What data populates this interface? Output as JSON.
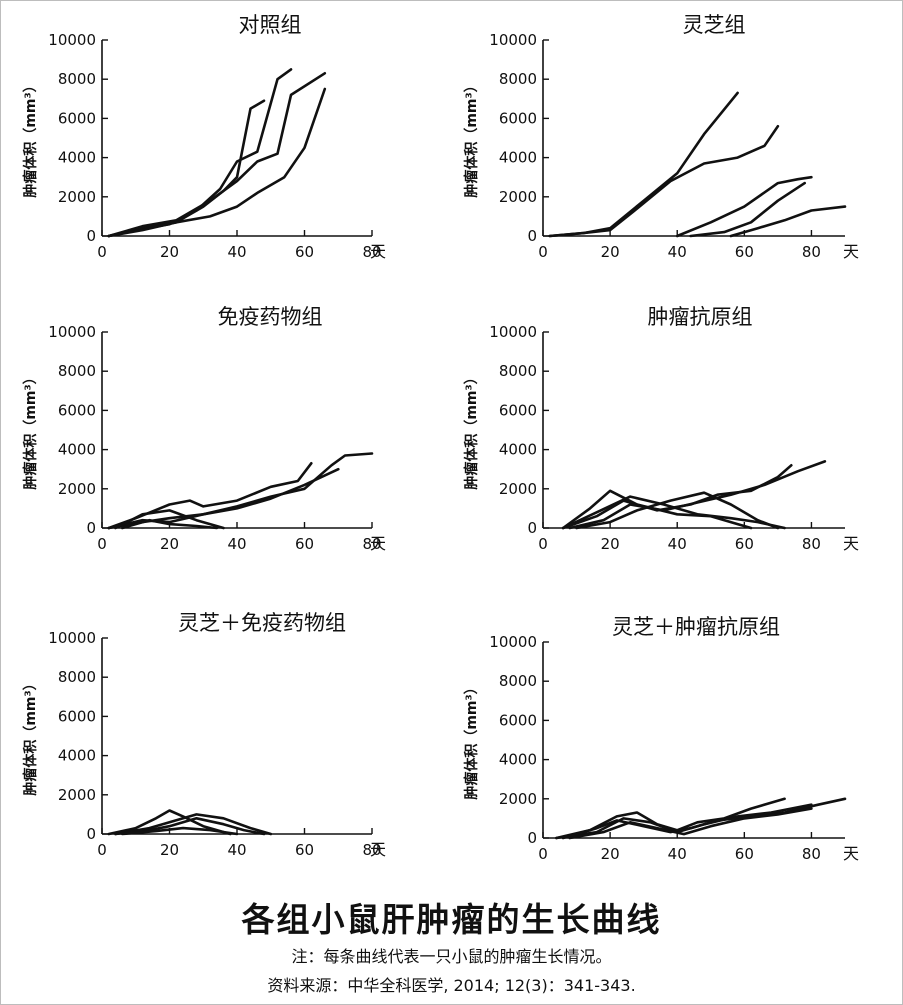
{
  "figure": {
    "title": "各组小鼠肝肿瘤的生长曲线",
    "note": "注：每条曲线代表一只小鼠的肿瘤生长情况。",
    "source": "资料来源：中华全科医学, 2014; 12(3)：341-343."
  },
  "chart_data": [
    {
      "type": "line",
      "title": "对照组",
      "xlabel": "天",
      "ylabel": "肿瘤体积（mm³）",
      "xlim": [
        0,
        80
      ],
      "ylim": [
        0,
        10000
      ],
      "xticks": [
        0,
        20,
        40,
        60,
        80
      ],
      "yticks": [
        0,
        2000,
        4000,
        6000,
        8000,
        10000
      ],
      "series": [
        {
          "points": [
            [
              2,
              0
            ],
            [
              10,
              300
            ],
            [
              20,
              600
            ],
            [
              28,
              1300
            ],
            [
              35,
              2400
            ],
            [
              40,
              3800
            ],
            [
              46,
              4300
            ],
            [
              52,
              8000
            ],
            [
              56,
              8500
            ]
          ]
        },
        {
          "points": [
            [
              2,
              0
            ],
            [
              12,
              400
            ],
            [
              22,
              700
            ],
            [
              30,
              1500
            ],
            [
              36,
              2300
            ],
            [
              40,
              3000
            ],
            [
              44,
              6500
            ],
            [
              48,
              6900
            ]
          ]
        },
        {
          "points": [
            [
              2,
              0
            ],
            [
              12,
              500
            ],
            [
              22,
              800
            ],
            [
              32,
              1800
            ],
            [
              40,
              2800
            ],
            [
              46,
              3800
            ],
            [
              52,
              4200
            ],
            [
              56,
              7200
            ],
            [
              66,
              8300
            ]
          ]
        },
        {
          "points": [
            [
              2,
              0
            ],
            [
              12,
              300
            ],
            [
              22,
              700
            ],
            [
              32,
              1000
            ],
            [
              40,
              1500
            ],
            [
              46,
              2200
            ],
            [
              54,
              3000
            ],
            [
              60,
              4500
            ],
            [
              66,
              7500
            ]
          ]
        }
      ]
    },
    {
      "type": "line",
      "title": "灵芝组",
      "xlabel": "天",
      "ylabel": "肿瘤体积（mm³）",
      "xlim": [
        0,
        90
      ],
      "ylim": [
        0,
        10000
      ],
      "xticks": [
        0,
        20,
        40,
        60,
        80
      ],
      "yticks": [
        0,
        2000,
        4000,
        6000,
        8000,
        10000
      ],
      "series": [
        {
          "points": [
            [
              2,
              0
            ],
            [
              12,
              150
            ],
            [
              20,
              400
            ],
            [
              30,
              1800
            ],
            [
              40,
              3200
            ],
            [
              48,
              5200
            ],
            [
              58,
              7300
            ]
          ]
        },
        {
          "points": [
            [
              2,
              0
            ],
            [
              12,
              150
            ],
            [
              20,
              300
            ],
            [
              28,
              1400
            ],
            [
              38,
              2800
            ],
            [
              48,
              3700
            ],
            [
              58,
              4000
            ],
            [
              66,
              4600
            ],
            [
              70,
              5600
            ]
          ]
        },
        {
          "points": [
            [
              40,
              0
            ],
            [
              50,
              700
            ],
            [
              60,
              1500
            ],
            [
              70,
              2700
            ],
            [
              76,
              2900
            ],
            [
              80,
              3000
            ]
          ]
        },
        {
          "points": [
            [
              44,
              0
            ],
            [
              54,
              200
            ],
            [
              62,
              700
            ],
            [
              70,
              1800
            ],
            [
              78,
              2700
            ]
          ]
        },
        {
          "points": [
            [
              56,
              0
            ],
            [
              64,
              400
            ],
            [
              72,
              800
            ],
            [
              80,
              1300
            ],
            [
              90,
              1500
            ]
          ]
        }
      ]
    },
    {
      "type": "line",
      "title": "免疫药物组",
      "xlabel": "天",
      "ylabel": "肿瘤体积（mm³）",
      "xlim": [
        0,
        80
      ],
      "ylim": [
        0,
        10000
      ],
      "xticks": [
        0,
        20,
        40,
        60,
        80
      ],
      "yticks": [
        0,
        2000,
        4000,
        6000,
        8000,
        10000
      ],
      "series": [
        {
          "points": [
            [
              2,
              0
            ],
            [
              10,
              500
            ],
            [
              20,
              1200
            ],
            [
              26,
              1400
            ],
            [
              30,
              1100
            ],
            [
              40,
              1400
            ],
            [
              50,
              2100
            ],
            [
              58,
              2400
            ],
            [
              62,
              3300
            ]
          ]
        },
        {
          "points": [
            [
              2,
              0
            ],
            [
              12,
              300
            ],
            [
              20,
              500
            ],
            [
              30,
              700
            ],
            [
              40,
              1100
            ],
            [
              50,
              1600
            ],
            [
              60,
              2000
            ],
            [
              68,
              3200
            ],
            [
              72,
              3700
            ],
            [
              80,
              3800
            ]
          ]
        },
        {
          "points": [
            [
              2,
              0
            ],
            [
              12,
              400
            ],
            [
              20,
              300
            ],
            [
              30,
              700
            ],
            [
              40,
              1000
            ],
            [
              50,
              1500
            ],
            [
              60,
              2200
            ],
            [
              70,
              3000
            ]
          ]
        },
        {
          "points": [
            [
              4,
              0
            ],
            [
              12,
              700
            ],
            [
              20,
              900
            ],
            [
              28,
              400
            ],
            [
              36,
              0
            ]
          ]
        },
        {
          "points": [
            [
              6,
              0
            ],
            [
              14,
              400
            ],
            [
              20,
              200
            ],
            [
              28,
              100
            ],
            [
              34,
              0
            ]
          ]
        }
      ]
    },
    {
      "type": "line",
      "title": "肿瘤抗原组",
      "xlabel": "天",
      "ylabel": "肿瘤体积（mm³）",
      "xlim": [
        0,
        90
      ],
      "ylim": [
        0,
        10000
      ],
      "xticks": [
        0,
        20,
        40,
        60,
        80
      ],
      "yticks": [
        0,
        2000,
        4000,
        6000,
        8000,
        10000
      ],
      "series": [
        {
          "points": [
            [
              6,
              0
            ],
            [
              14,
              1000
            ],
            [
              20,
              1900
            ],
            [
              28,
              1200
            ],
            [
              40,
              700
            ],
            [
              50,
              600
            ],
            [
              58,
              200
            ],
            [
              62,
              0
            ]
          ]
        },
        {
          "points": [
            [
              6,
              0
            ],
            [
              16,
              800
            ],
            [
              26,
              1600
            ],
            [
              36,
              1200
            ],
            [
              46,
              700
            ],
            [
              56,
              500
            ],
            [
              64,
              300
            ],
            [
              72,
              0
            ]
          ]
        },
        {
          "points": [
            [
              6,
              0
            ],
            [
              16,
              600
            ],
            [
              24,
              1400
            ],
            [
              34,
              900
            ],
            [
              44,
              1200
            ],
            [
              52,
              1700
            ],
            [
              62,
              1900
            ],
            [
              70,
              2600
            ],
            [
              74,
              3200
            ]
          ]
        },
        {
          "points": [
            [
              8,
              0
            ],
            [
              18,
              400
            ],
            [
              26,
              1200
            ],
            [
              36,
              900
            ],
            [
              46,
              1300
            ],
            [
              56,
              1700
            ],
            [
              66,
              2200
            ],
            [
              76,
              2900
            ],
            [
              84,
              3400
            ]
          ]
        },
        {
          "points": [
            [
              10,
              0
            ],
            [
              20,
              300
            ],
            [
              28,
              900
            ],
            [
              38,
              1400
            ],
            [
              48,
              1800
            ],
            [
              56,
              1200
            ],
            [
              64,
              400
            ],
            [
              70,
              0
            ]
          ]
        }
      ]
    },
    {
      "type": "line",
      "title": "灵芝＋免疫药物组",
      "xlabel": "天",
      "ylabel": "肿瘤体积（mm³）",
      "xlim": [
        0,
        80
      ],
      "ylim": [
        0,
        10000
      ],
      "xticks": [
        0,
        20,
        40,
        60,
        80
      ],
      "yticks": [
        0,
        2000,
        4000,
        6000,
        8000,
        10000
      ],
      "series": [
        {
          "points": [
            [
              2,
              0
            ],
            [
              10,
              300
            ],
            [
              16,
              800
            ],
            [
              20,
              1200
            ],
            [
              24,
              900
            ],
            [
              30,
              400
            ],
            [
              38,
              0
            ]
          ]
        },
        {
          "points": [
            [
              4,
              0
            ],
            [
              14,
              300
            ],
            [
              22,
              700
            ],
            [
              28,
              1000
            ],
            [
              36,
              800
            ],
            [
              44,
              300
            ],
            [
              50,
              0
            ]
          ]
        },
        {
          "points": [
            [
              4,
              0
            ],
            [
              14,
              200
            ],
            [
              20,
              400
            ],
            [
              28,
              800
            ],
            [
              36,
              500
            ],
            [
              42,
              200
            ],
            [
              48,
              0
            ]
          ]
        },
        {
          "points": [
            [
              6,
              0
            ],
            [
              16,
              150
            ],
            [
              24,
              300
            ],
            [
              32,
              200
            ],
            [
              40,
              0
            ]
          ]
        }
      ]
    },
    {
      "type": "line",
      "title": "灵芝＋肿瘤抗原组",
      "xlabel": "天",
      "ylabel": "肿瘤体积（mm³）",
      "xlim": [
        0,
        90
      ],
      "ylim": [
        0,
        10000
      ],
      "xticks": [
        0,
        20,
        40,
        60,
        80
      ],
      "yticks": [
        0,
        2000,
        4000,
        6000,
        8000,
        10000
      ],
      "series": [
        {
          "points": [
            [
              4,
              0
            ],
            [
              14,
              400
            ],
            [
              22,
              1100
            ],
            [
              28,
              1300
            ],
            [
              34,
              700
            ],
            [
              40,
              400
            ],
            [
              46,
              800
            ],
            [
              54,
              1000
            ],
            [
              62,
              1500
            ],
            [
              72,
              2000
            ]
          ]
        },
        {
          "points": [
            [
              4,
              0
            ],
            [
              16,
              300
            ],
            [
              24,
              1000
            ],
            [
              32,
              800
            ],
            [
              40,
              300
            ],
            [
              48,
              700
            ],
            [
              58,
              1100
            ],
            [
              68,
              1300
            ],
            [
              80,
              1700
            ]
          ]
        },
        {
          "points": [
            [
              6,
              0
            ],
            [
              16,
              500
            ],
            [
              22,
              900
            ],
            [
              30,
              600
            ],
            [
              38,
              300
            ],
            [
              44,
              500
            ],
            [
              52,
              900
            ],
            [
              62,
              1100
            ],
            [
              72,
              1300
            ],
            [
              82,
              1700
            ],
            [
              90,
              2000
            ]
          ]
        },
        {
          "points": [
            [
              8,
              0
            ],
            [
              18,
              300
            ],
            [
              26,
              800
            ],
            [
              34,
              500
            ],
            [
              42,
              200
            ],
            [
              50,
              600
            ],
            [
              60,
              1000
            ],
            [
              70,
              1200
            ],
            [
              80,
              1500
            ]
          ]
        }
      ]
    }
  ]
}
